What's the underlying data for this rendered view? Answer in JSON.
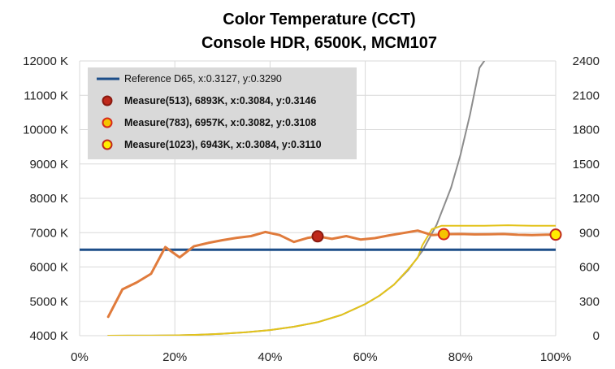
{
  "chart_data": {
    "type": "line",
    "title": "Color Temperature (CCT)",
    "subtitle": "Console HDR, 6500K, MCM107",
    "x_axis": {
      "range": [
        0,
        100
      ],
      "ticks": [
        0,
        20,
        40,
        60,
        80,
        100
      ],
      "tick_labels": [
        "0%",
        "20%",
        "40%",
        "60%",
        "80%",
        "100%"
      ]
    },
    "y_left": {
      "range": [
        4000,
        12000
      ],
      "ticks": [
        4000,
        5000,
        6000,
        7000,
        8000,
        9000,
        10000,
        11000,
        12000
      ],
      "tick_labels": [
        "4000 K",
        "5000 K",
        "6000 K",
        "7000 K",
        "8000 K",
        "9000 K",
        "10000 K",
        "11000 K",
        "12000 K"
      ]
    },
    "y_right": {
      "range": [
        0,
        2400
      ],
      "ticks": [
        0,
        300,
        600,
        900,
        1200,
        1500,
        1800,
        2100,
        2400
      ],
      "tick_labels": [
        "0",
        "300",
        "600",
        "900",
        "1200",
        "1500",
        "1800",
        "2100",
        "2400"
      ]
    },
    "grid": true,
    "legend_position": "top-left",
    "legend": [
      "Reference D65, x:0.3127, y:0.3290",
      "Measure(513), 6893K, x:0.3084, y:0.3146",
      "Measure(783), 6957K, x:0.3082, y:0.3108",
      "Measure(1023), 6943K, x:0.3084, y:0.3110"
    ],
    "series": [
      {
        "role": "cct-line",
        "axis": "left",
        "color": "#e07b3c",
        "x": [
          6,
          9,
          12,
          15,
          18,
          21,
          24,
          27,
          30,
          33,
          36,
          39,
          42,
          45,
          48,
          50,
          53,
          56,
          59,
          62,
          65,
          68,
          71,
          74,
          77,
          80,
          83,
          86,
          89,
          92,
          95,
          98,
          100
        ],
        "y": [
          4550,
          5350,
          5550,
          5800,
          6580,
          6280,
          6600,
          6700,
          6780,
          6850,
          6900,
          7020,
          6930,
          6730,
          6850,
          6893,
          6820,
          6900,
          6800,
          6840,
          6920,
          6990,
          7060,
          6930,
          6957,
          6960,
          6950,
          6955,
          6960,
          6940,
          6930,
          6940,
          6943
        ]
      },
      {
        "role": "reference-line",
        "axis": "left",
        "color": "#1d4e89",
        "x": [
          0,
          100
        ],
        "y": [
          6504,
          6504
        ]
      },
      {
        "role": "luminance-target",
        "axis": "right",
        "color": "#8c8c8c",
        "x": [
          6,
          10,
          15,
          20,
          25,
          30,
          35,
          40,
          45,
          50,
          55,
          60,
          63,
          66,
          69,
          72,
          75,
          78,
          80,
          82,
          84,
          85
        ],
        "y": [
          0,
          0.5,
          1,
          3,
          8,
          17,
          30,
          49,
          78,
          118,
          181,
          276,
          350,
          445,
          572,
          740,
          970,
          1290,
          1580,
          1930,
          2340,
          2400
        ]
      },
      {
        "role": "luminance-measured",
        "axis": "right",
        "color": "#e3c31a",
        "x": [
          6,
          10,
          15,
          20,
          25,
          30,
          35,
          40,
          45,
          50,
          55,
          60,
          63,
          66,
          69,
          71,
          72,
          74,
          76,
          80,
          85,
          90,
          95,
          100
        ],
        "y": [
          0,
          0.5,
          1,
          3,
          8,
          17,
          30,
          49,
          78,
          118,
          181,
          276,
          350,
          445,
          580,
          680,
          790,
          930,
          960,
          960,
          960,
          965,
          960,
          960
        ]
      }
    ],
    "markers": [
      {
        "x": 50,
        "y": 6893,
        "fill": "#c0291b",
        "stroke": "#8a1a10"
      },
      {
        "x": 76.5,
        "y": 6957,
        "fill": "#f5c400",
        "stroke": "#d72a1a"
      },
      {
        "x": 100,
        "y": 6943,
        "fill": "#ffee00",
        "stroke": "#c0291b"
      }
    ],
    "legend_symbols": [
      {
        "kind": "line",
        "color": "#1d4e89"
      },
      {
        "kind": "dot",
        "fill": "#c0291b",
        "stroke": "#8a1a10"
      },
      {
        "kind": "dot",
        "fill": "#f5c400",
        "stroke": "#d72a1a"
      },
      {
        "kind": "dot",
        "fill": "#ffee00",
        "stroke": "#c0291b"
      }
    ]
  }
}
